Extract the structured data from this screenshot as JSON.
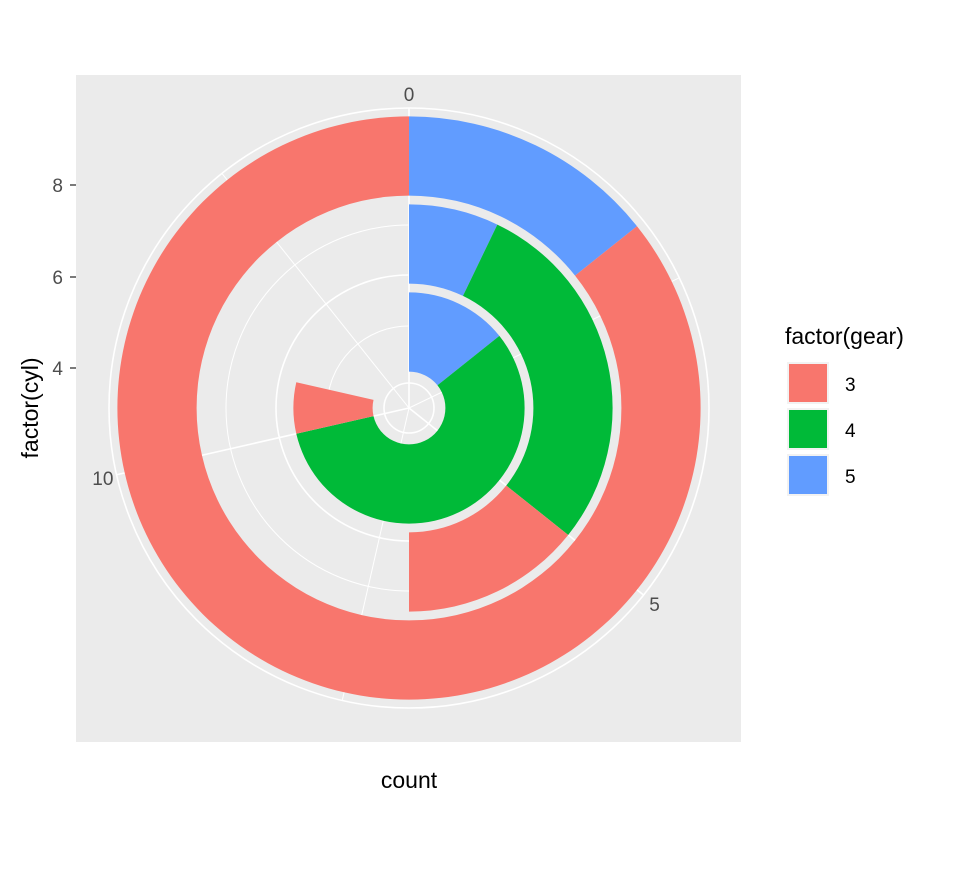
{
  "chart_data": {
    "type": "pie",
    "subtype": "stacked-bar-polar (coord_polar, theta = count)",
    "xlabel": "factor(cyl)",
    "ylabel": "count",
    "x_categories": [
      "4",
      "6",
      "8"
    ],
    "x_tick_labels": [
      "4",
      "6",
      "8"
    ],
    "theta_ticks": [
      "0",
      "5",
      "10"
    ],
    "theta_range": [
      0,
      14
    ],
    "grid": true,
    "legend": {
      "title": "factor(gear)",
      "position": "right",
      "items": [
        "3",
        "4",
        "5"
      ]
    },
    "series": [
      {
        "name": "3",
        "color": "#F8766D",
        "values": [
          1,
          2,
          12
        ]
      },
      {
        "name": "4",
        "color": "#00BA38",
        "values": [
          8,
          4,
          0
        ]
      },
      {
        "name": "5",
        "color": "#619CFF",
        "values": [
          2,
          1,
          2
        ]
      }
    ]
  }
}
